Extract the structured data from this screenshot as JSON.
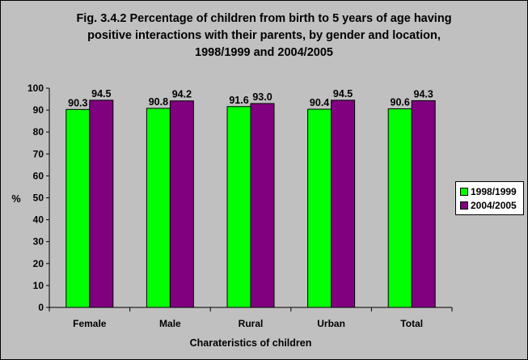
{
  "colors": {
    "series_1": "#00ff00",
    "series_2": "#800080",
    "background": "#c0c0c0"
  },
  "chart_data": {
    "type": "bar",
    "title": [
      "Fig. 3.4.2 Percentage of children from birth to 5 years of age having",
      "positive interactions with their parents, by gender and location,",
      "1998/1999 and 2004/2005"
    ],
    "xlabel": "Charateristics of children",
    "ylabel": "%",
    "ylim": [
      0,
      100
    ],
    "yticks": [
      0,
      10,
      20,
      30,
      40,
      50,
      60,
      70,
      80,
      90,
      100
    ],
    "grid": false,
    "legend_position": "right",
    "categories": [
      "Female",
      "Male",
      "Rural",
      "Urban",
      "Total"
    ],
    "series": [
      {
        "name": "1998/1999",
        "values": [
          90.3,
          90.8,
          91.6,
          90.4,
          90.6
        ],
        "labels": [
          "90.3",
          "90.8",
          "91.6",
          "90.4",
          "90.6"
        ]
      },
      {
        "name": "2004/2005",
        "values": [
          94.5,
          94.2,
          93.0,
          94.5,
          94.3
        ],
        "labels": [
          "94.5",
          "94.2",
          "93.0",
          "94.5",
          "94.3"
        ]
      }
    ]
  }
}
